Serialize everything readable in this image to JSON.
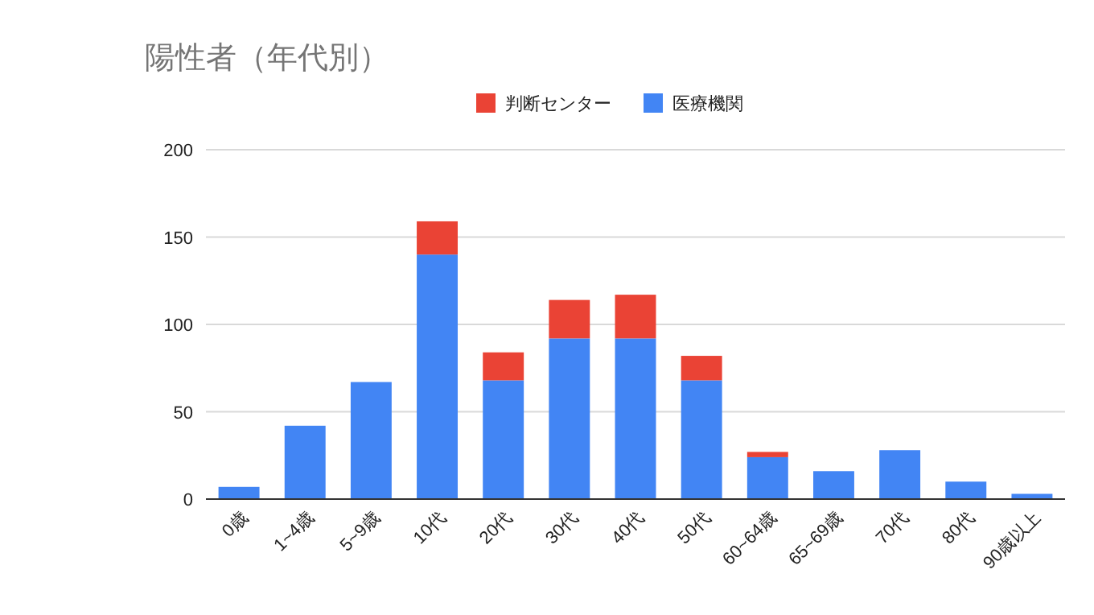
{
  "chart_data": {
    "type": "bar",
    "title": "陽性者（年代別）",
    "stacked": true,
    "legend": "top",
    "grid": "y",
    "categories": [
      "0歳",
      "1~4歳",
      "5~9歳",
      "10代",
      "20代",
      "30代",
      "40代",
      "50代",
      "60~64歳",
      "65~69歳",
      "70代",
      "80代",
      "90歳以上"
    ],
    "series": [
      {
        "name": "医療機関",
        "color": "#4285f4",
        "values": [
          7,
          42,
          67,
          140,
          68,
          92,
          92,
          68,
          24,
          16,
          28,
          10,
          3
        ]
      },
      {
        "name": "判断センター",
        "color": "#ea4335",
        "values": [
          null,
          null,
          null,
          19,
          16,
          22,
          25,
          14,
          3,
          null,
          null,
          null,
          null
        ]
      }
    ],
    "ylim": [
      0,
      200
    ],
    "yticks": [
      0,
      50,
      100,
      150,
      200
    ]
  }
}
